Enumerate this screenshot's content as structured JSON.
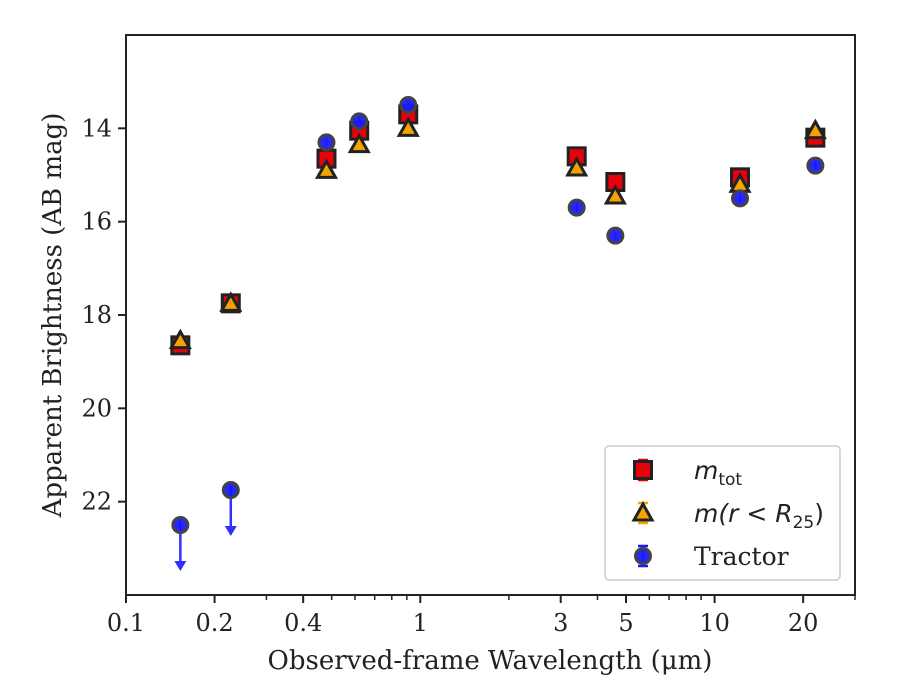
{
  "chart_data": {
    "type": "scatter",
    "title": "",
    "xlabel": "Observed-frame Wavelength (μm)",
    "ylabel": "Apparent Brightness (AB mag)",
    "xscale": "log",
    "xlim": [
      0.1,
      30
    ],
    "ylim": [
      24.0,
      12.0
    ],
    "y_inverted": true,
    "grid": false,
    "legend_position": "lower-right",
    "x_tick_labels": [
      "0.1",
      "0.2",
      "0.4",
      "1",
      "3",
      "5",
      "10",
      "20"
    ],
    "x_ticks": [
      0.1,
      0.2,
      0.4,
      1,
      3,
      5,
      10,
      20
    ],
    "y_tick_labels": [
      "14",
      "16",
      "18",
      "20",
      "22"
    ],
    "y_ticks": [
      14,
      16,
      18,
      20,
      22
    ],
    "series": [
      {
        "name": "m_tot",
        "legend_main": "m",
        "legend_sub": "tot",
        "marker": "square",
        "color": "#e8000b",
        "edge_color": "#222222",
        "points": [
          {
            "x": 0.153,
            "y": 18.65
          },
          {
            "x": 0.227,
            "y": 17.75
          },
          {
            "x": 0.48,
            "y": 14.65
          },
          {
            "x": 0.62,
            "y": 14.05
          },
          {
            "x": 0.91,
            "y": 13.7
          },
          {
            "x": 3.4,
            "y": 14.6
          },
          {
            "x": 4.6,
            "y": 15.15
          },
          {
            "x": 12.2,
            "y": 15.05
          },
          {
            "x": 22.0,
            "y": 14.2
          }
        ]
      },
      {
        "name": "m(r < R_25)",
        "legend_main": "m(r < R",
        "legend_sub": "25",
        "legend_tail": ")",
        "marker": "triangle",
        "color": "#f5a300",
        "edge_color": "#222222",
        "points": [
          {
            "x": 0.153,
            "y": 18.55
          },
          {
            "x": 0.227,
            "y": 17.75
          },
          {
            "x": 0.48,
            "y": 14.9
          },
          {
            "x": 0.62,
            "y": 14.35
          },
          {
            "x": 0.91,
            "y": 14.0
          },
          {
            "x": 3.4,
            "y": 14.85
          },
          {
            "x": 4.6,
            "y": 15.45
          },
          {
            "x": 12.2,
            "y": 15.2
          },
          {
            "x": 22.0,
            "y": 14.05
          }
        ]
      },
      {
        "name": "Tractor",
        "marker": "circle",
        "color": "#1a1aff",
        "edge_color": "#444444",
        "points": [
          {
            "x": 0.153,
            "y": 22.5,
            "upper_limit": true
          },
          {
            "x": 0.227,
            "y": 21.75,
            "upper_limit": true
          },
          {
            "x": 0.48,
            "y": 14.3
          },
          {
            "x": 0.62,
            "y": 13.85
          },
          {
            "x": 0.91,
            "y": 13.5
          },
          {
            "x": 3.4,
            "y": 15.7
          },
          {
            "x": 4.6,
            "y": 16.3
          },
          {
            "x": 12.2,
            "y": 15.5
          },
          {
            "x": 22.0,
            "y": 14.8
          }
        ]
      }
    ]
  }
}
